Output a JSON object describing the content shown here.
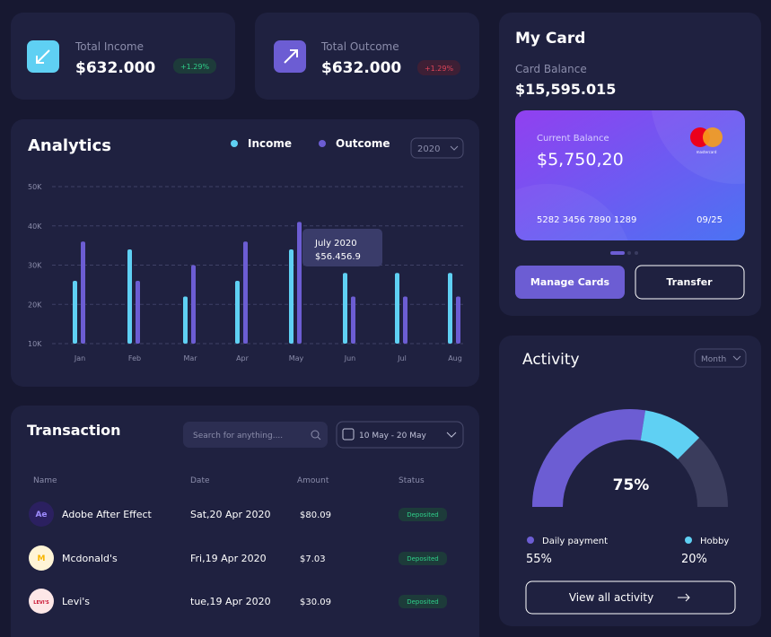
{
  "income": {
    "label": "Total Income",
    "amount": "$632.000",
    "change": "+1.29%"
  },
  "outcome": {
    "label": "Total Outcome",
    "amount": "$632.000",
    "change": "+1.29%"
  },
  "analytics": {
    "title": "Analytics",
    "year": "2020",
    "tooltip": {
      "title": "July 2020",
      "value": "$56.456.9"
    },
    "chart_data": {
      "type": "bar",
      "categories": [
        "Jan",
        "Feb",
        "Mar",
        "Apr",
        "May",
        "Jun",
        "Jul",
        "Aug"
      ],
      "series": [
        {
          "name": "Income",
          "color": "#5fd0f3",
          "values": [
            26000,
            34000,
            22000,
            26000,
            34000,
            28000,
            28000,
            28000
          ]
        },
        {
          "name": "Outcome",
          "color": "#6c5dd3",
          "values": [
            36000,
            26000,
            30000,
            36000,
            41000,
            22000,
            22000,
            22000
          ]
        }
      ],
      "ylim": [
        10000,
        50000
      ],
      "yticks": [
        {
          "value": 10000,
          "label": "10K"
        },
        {
          "value": 20000,
          "label": "20K"
        },
        {
          "value": 30000,
          "label": "30K"
        },
        {
          "value": 40000,
          "label": "40K"
        },
        {
          "value": 50000,
          "label": "50K"
        }
      ],
      "grid": true
    }
  },
  "transaction": {
    "title": "Transaction",
    "search_placeholder": "Search for anything....",
    "date_range": "10 May - 20 May",
    "columns": [
      "Name",
      "Date",
      "Amount",
      "Status"
    ],
    "rows": [
      {
        "icon": "Ae",
        "name": "Adobe After Effect",
        "date": "Sat,20 Apr 2020",
        "amount": "$80.09",
        "status": "Deposited"
      },
      {
        "icon": "M",
        "name": "Mcdonald's",
        "date": "Fri,19 Apr 2020",
        "amount": "$7.03",
        "status": "Deposited"
      },
      {
        "icon": "LEVI'S",
        "name": "Levi's",
        "date": "tue,19 Apr 2020",
        "amount": "$30.09",
        "status": "Deposited"
      }
    ]
  },
  "my_card": {
    "title": "My Card",
    "balance_label": "Card Balance",
    "balance": "$15,595.015",
    "card": {
      "label": "Current Balance",
      "amount": "$5,750,20",
      "number": "5282 3456 7890 1289",
      "expiry": "09/25",
      "brand": "mastercard"
    },
    "buttons": [
      "Manage Cards",
      "Transfer"
    ]
  },
  "activity": {
    "title": "Activity",
    "period": "Month",
    "center_label": "75%",
    "chart_data": {
      "type": "gauge",
      "series": [
        {
          "name": "Daily payment",
          "color": "#6c5dd3",
          "value": 55,
          "value_label": "55%"
        },
        {
          "name": "Hobby",
          "color": "#5fd0f3",
          "value": 20,
          "value_label": "20%"
        }
      ]
    },
    "button": "View all activity"
  }
}
